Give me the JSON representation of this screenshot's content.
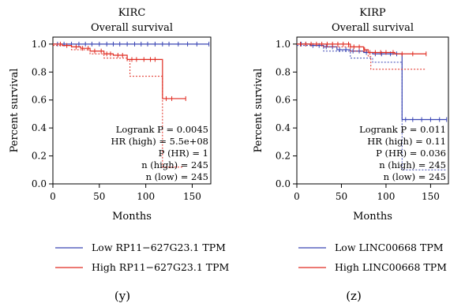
{
  "chart_data": [
    {
      "type": "line",
      "title": "KIRC",
      "subtitle": "Overall survival",
      "xlabel": "Months",
      "ylabel": "Percent survival",
      "xlim": [
        0,
        170
      ],
      "ylim": [
        0,
        1.05
      ],
      "xticks": [
        "0",
        "50",
        "100",
        "150"
      ],
      "yticks": [
        "0.0",
        "0.2",
        "0.4",
        "0.6",
        "0.8",
        "1.0"
      ],
      "annotations": [
        {
          "key": "Logrank",
          "value": "Logrank P = 0.0045"
        },
        {
          "key": "HR",
          "value": "HR (high) = 5.5e+08"
        },
        {
          "key": "PHR",
          "value": "P (HR) = 1"
        },
        {
          "key": "nhigh",
          "value": "n (high) = 245"
        },
        {
          "key": "nlow",
          "value": "n (low) = 245"
        }
      ],
      "legend": [
        "Low RP11−627G23.1 TPM",
        "High RP11−627G23.1 TPM"
      ],
      "series": [
        {
          "color": "#3a46b4",
          "x": [
            0,
            168
          ],
          "y": [
            1.0,
            1.0
          ],
          "censor_x": [
            5,
            12,
            20,
            28,
            35,
            42,
            50,
            58,
            65,
            72,
            80,
            88,
            95,
            102,
            110,
            118,
            125,
            135,
            145,
            155,
            168
          ]
        },
        {
          "color": "#e02b20",
          "x": [
            0,
            10,
            20,
            30,
            40,
            55,
            65,
            80,
            95,
            115,
            118,
            125,
            143
          ],
          "y": [
            1.0,
            0.99,
            0.98,
            0.97,
            0.95,
            0.93,
            0.92,
            0.89,
            0.89,
            0.89,
            0.61,
            0.61,
            0.61
          ],
          "censor_x": [
            8,
            15,
            25,
            32,
            38,
            45,
            52,
            58,
            62,
            70,
            75,
            85,
            90,
            98,
            105,
            110,
            122,
            128,
            143
          ],
          "ci_lower_x": [
            0,
            20,
            40,
            55,
            80,
            83,
            115,
            118,
            125,
            140
          ],
          "ci_lower_y": [
            0.99,
            0.96,
            0.93,
            0.9,
            0.88,
            0.77,
            0.77,
            0.12,
            0.12,
            0.12
          ]
        }
      ]
    },
    {
      "type": "line",
      "title": "KIRP",
      "subtitle": "Overall survival",
      "xlabel": "Months",
      "ylabel": "Percent survival",
      "xlim": [
        0,
        170
      ],
      "ylim": [
        0,
        1.05
      ],
      "xticks": [
        "0",
        "50",
        "100",
        "150"
      ],
      "yticks": [
        "0.0",
        "0.2",
        "0.4",
        "0.6",
        "0.8",
        "1.0"
      ],
      "annotations": [
        {
          "key": "Logrank",
          "value": "Logrank P = 0.011"
        },
        {
          "key": "HR",
          "value": "HR (high) = 0.11"
        },
        {
          "key": "PHR",
          "value": "P (HR) = 0.036"
        },
        {
          "key": "nhigh",
          "value": "n (high) = 245"
        },
        {
          "key": "nlow",
          "value": "n (low) = 245"
        }
      ],
      "legend": [
        "Low LINC00668 TPM",
        "High LINC00668 TPM"
      ],
      "series": [
        {
          "color": "#3a46b4",
          "x": [
            0,
            15,
            30,
            45,
            60,
            75,
            85,
            100,
            115,
            118,
            125,
            168
          ],
          "y": [
            1.0,
            0.99,
            0.98,
            0.96,
            0.95,
            0.94,
            0.93,
            0.93,
            0.93,
            0.46,
            0.46,
            0.46
          ],
          "censor_x": [
            5,
            10,
            18,
            25,
            33,
            40,
            48,
            55,
            63,
            70,
            78,
            88,
            95,
            105,
            112,
            122,
            130,
            140,
            150,
            160,
            168
          ],
          "ci_lower_x": [
            0,
            30,
            60,
            85,
            115,
            118,
            125,
            168
          ],
          "ci_lower_y": [
            0.99,
            0.95,
            0.9,
            0.87,
            0.87,
            0.1,
            0.1,
            0.1
          ]
        },
        {
          "color": "#e02b20",
          "x": [
            0,
            30,
            60,
            75,
            80,
            110,
            145
          ],
          "y": [
            1.0,
            1.0,
            0.98,
            0.96,
            0.94,
            0.93,
            0.93
          ],
          "censor_x": [
            4,
            10,
            16,
            22,
            28,
            34,
            40,
            46,
            52,
            58,
            64,
            70,
            76,
            82,
            88,
            94,
            100,
            108,
            118,
            130,
            145
          ],
          "ci_lower_x": [
            0,
            30,
            60,
            80,
            83,
            110,
            145
          ],
          "ci_lower_y": [
            1.0,
            0.98,
            0.95,
            0.91,
            0.82,
            0.82,
            0.82
          ]
        }
      ]
    }
  ],
  "panel_labels": [
    "(y)",
    "(z)"
  ]
}
